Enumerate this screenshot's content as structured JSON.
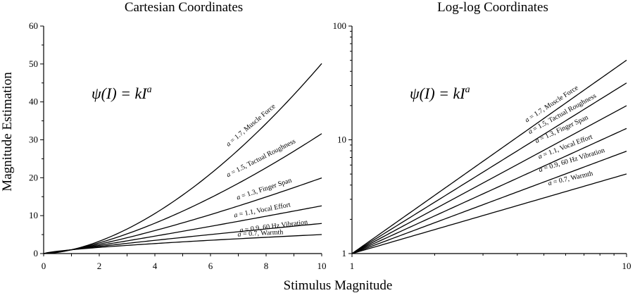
{
  "xlabel": "Stimulus Magnitude",
  "ylabel": "Magnitude Estimation",
  "chart_data": [
    {
      "type": "line",
      "title": "Cartesian Coordinates",
      "formula": {
        "lhs": "ψ(I) = kI",
        "exp": "a"
      },
      "x_scale": "linear",
      "y_scale": "linear",
      "xlim": [
        0,
        10
      ],
      "ylim": [
        0,
        60
      ],
      "x_ticks": [
        "0",
        "2",
        "4",
        "6",
        "8",
        "10"
      ],
      "y_ticks": [
        "0",
        "10",
        "20",
        "30",
        "40",
        "50",
        "60"
      ],
      "grid": false,
      "series": [
        {
          "name": "a = 1.7, Muscle Force",
          "exponent": 1.7,
          "x": [
            0,
            1,
            2,
            3,
            4,
            5,
            6,
            7,
            8,
            9,
            10
          ],
          "y": [
            0,
            1,
            3.2,
            6.5,
            10.6,
            15.4,
            21.1,
            27.3,
            34.3,
            41.9,
            50.1
          ]
        },
        {
          "name": "a = 1.5, Tactual Roughness",
          "exponent": 1.5,
          "x": [
            0,
            1,
            2,
            3,
            4,
            5,
            6,
            7,
            8,
            9,
            10
          ],
          "y": [
            0,
            1,
            2.8,
            5.2,
            8,
            11.2,
            14.7,
            18.5,
            22.6,
            27,
            31.6
          ]
        },
        {
          "name": "a = 1.3, Finger Span",
          "exponent": 1.3,
          "x": [
            0,
            1,
            2,
            3,
            4,
            5,
            6,
            7,
            8,
            9,
            10
          ],
          "y": [
            0,
            1,
            2.5,
            4.2,
            6.1,
            8.1,
            10.3,
            12.5,
            14.9,
            17.4,
            20
          ]
        },
        {
          "name": "a = 1.1, Vocal Effort",
          "exponent": 1.1,
          "x": [
            0,
            1,
            2,
            3,
            4,
            5,
            6,
            7,
            8,
            9,
            10
          ],
          "y": [
            0,
            1,
            2.1,
            3.3,
            4.6,
            5.9,
            7.2,
            8.5,
            9.8,
            11.2,
            12.6
          ]
        },
        {
          "name": "a = 0.9, 60 Hz Vibration",
          "exponent": 0.9,
          "x": [
            0,
            1,
            2,
            3,
            4,
            5,
            6,
            7,
            8,
            9,
            10
          ],
          "y": [
            0,
            1,
            1.9,
            2.7,
            3.5,
            4.3,
            5,
            5.8,
            6.5,
            7.2,
            7.9
          ]
        },
        {
          "name": "a = 0.7, Warmth",
          "exponent": 0.7,
          "x": [
            0,
            1,
            2,
            3,
            4,
            5,
            6,
            7,
            8,
            9,
            10
          ],
          "y": [
            0,
            1,
            1.6,
            2.2,
            2.6,
            3.1,
            3.5,
            3.9,
            4.3,
            4.7,
            5
          ]
        }
      ]
    },
    {
      "type": "line",
      "title": "Log-log Coordinates",
      "formula": {
        "lhs": "ψ(I) = kI",
        "exp": "a"
      },
      "x_scale": "log",
      "y_scale": "log",
      "xlim": [
        1,
        10
      ],
      "ylim": [
        1,
        100
      ],
      "x_ticks": [
        "1",
        "10"
      ],
      "y_ticks": [
        "1",
        "10",
        "100"
      ],
      "grid": false,
      "series": [
        {
          "name": "a = 1.7, Muscle Force",
          "exponent": 1.7,
          "x": [
            1,
            10
          ],
          "y": [
            1,
            50.1
          ]
        },
        {
          "name": "a = 1.5, Tactual Roughness",
          "exponent": 1.5,
          "x": [
            1,
            10
          ],
          "y": [
            1,
            31.6
          ]
        },
        {
          "name": "a = 1.3, Finger Span",
          "exponent": 1.3,
          "x": [
            1,
            10
          ],
          "y": [
            1,
            20
          ]
        },
        {
          "name": "a = 1.1, Vocal Effort",
          "exponent": 1.1,
          "x": [
            1,
            10
          ],
          "y": [
            1,
            12.6
          ]
        },
        {
          "name": "a = 0.9, 60 Hz Vibration",
          "exponent": 0.9,
          "x": [
            1,
            10
          ],
          "y": [
            1,
            7.9
          ]
        },
        {
          "name": "a = 0.7, Warmth",
          "exponent": 0.7,
          "x": [
            1,
            10
          ],
          "y": [
            1,
            5
          ]
        }
      ]
    }
  ]
}
